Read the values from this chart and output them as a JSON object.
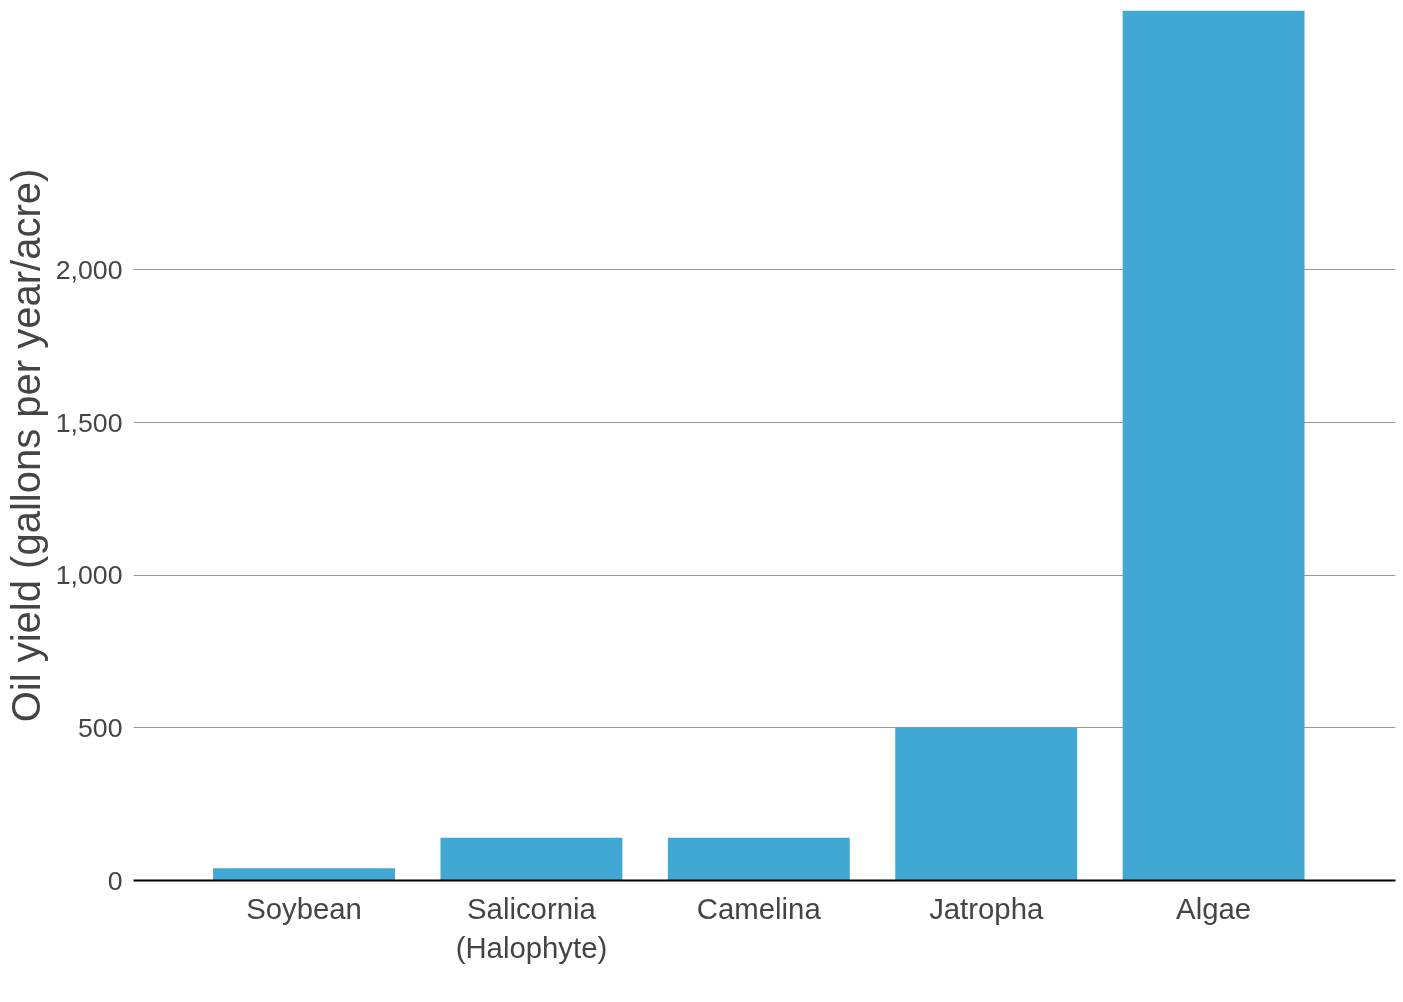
{
  "chart_data": {
    "type": "bar",
    "ylabel": "Oil yield (gallons per year/acre)",
    "categories": [
      "Soybean",
      "Salicornia\n(Halophyte)",
      "Camelina",
      "Jatropha",
      "Algae"
    ],
    "values": [
      40,
      140,
      140,
      500,
      2850
    ],
    "color": "#41a8d3",
    "yticks": [
      0,
      {
        "value": 500,
        "label": "500"
      },
      {
        "value": 1000,
        "label": "1,000"
      },
      {
        "value": 1500,
        "label": "1,500"
      },
      {
        "value": 2000,
        "label": "2,000"
      }
    ],
    "ylim": [
      0,
      2850
    ],
    "grid": "y"
  }
}
